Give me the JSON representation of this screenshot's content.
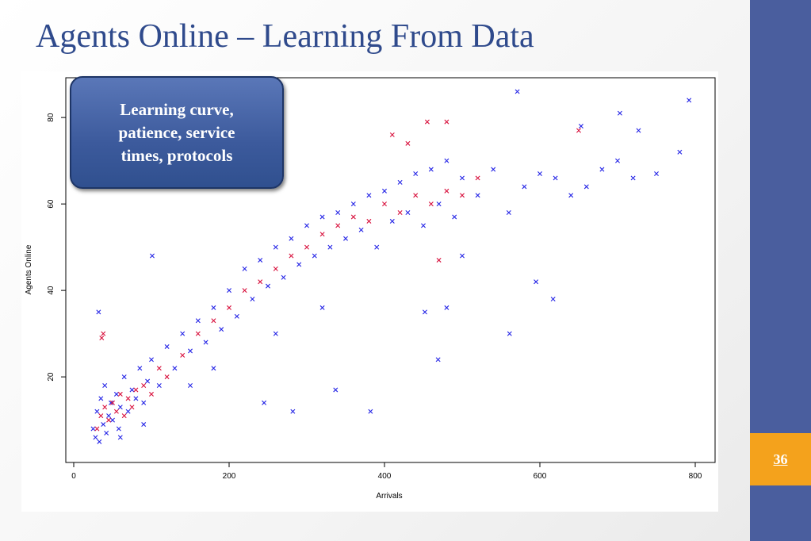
{
  "header": {
    "title": "Agents Online – Learning From Data"
  },
  "callout": {
    "text": "Learning curve, patience, service times, protocols"
  },
  "page_number": "36",
  "chart_data": {
    "type": "scatter",
    "xlabel": "Arrivals",
    "ylabel": "Agents Online",
    "xlim": [
      -10.2,
      825.5
    ],
    "ylim": [
      0.2,
      89.2
    ],
    "xticks": [
      0,
      200,
      400,
      600,
      800
    ],
    "yticks": [
      20,
      40,
      60,
      80
    ],
    "series": [
      {
        "color": "#2424e6",
        "x": [
          25,
          28,
          30,
          33,
          35,
          38,
          40,
          42,
          45,
          48,
          50,
          55,
          58,
          60,
          65,
          70,
          75,
          80,
          85,
          90,
          95,
          100,
          110,
          120,
          130,
          140,
          150,
          160,
          170,
          180,
          190,
          200,
          210,
          220,
          230,
          240,
          250,
          260,
          270,
          280,
          290,
          300,
          310,
          320,
          330,
          340,
          350,
          360,
          370,
          380,
          390,
          400,
          410,
          420,
          430,
          440,
          450,
          460,
          470,
          480,
          490,
          500,
          520,
          540,
          560,
          580,
          600,
          620,
          640,
          660,
          680,
          700,
          720,
          750,
          780,
          792,
          571,
          653,
          703,
          727,
          382,
          282,
          337,
          245,
          101,
          32,
          469,
          561,
          617,
          595,
          480,
          452,
          180,
          260,
          150,
          320,
          500,
          60,
          90
        ],
        "values": [
          8,
          6,
          12,
          5,
          15,
          9,
          18,
          7,
          11,
          14,
          10,
          16,
          8,
          13,
          20,
          12,
          17,
          15,
          22,
          14,
          19,
          24,
          18,
          27,
          22,
          30,
          26,
          33,
          28,
          36,
          31,
          40,
          34,
          45,
          38,
          47,
          41,
          50,
          43,
          52,
          46,
          55,
          48,
          57,
          50,
          58,
          52,
          60,
          54,
          62,
          50,
          63,
          56,
          65,
          58,
          67,
          55,
          68,
          60,
          70,
          57,
          66,
          62,
          68,
          58,
          64,
          67,
          66,
          62,
          64,
          68,
          70,
          66,
          67,
          72,
          84,
          86,
          78,
          81,
          77,
          12,
          12,
          17,
          14,
          48,
          35,
          24,
          30,
          38,
          42,
          36,
          35,
          22,
          30,
          18,
          36,
          48,
          6,
          9
        ]
      },
      {
        "color": "#d8103c",
        "x": [
          30,
          35,
          40,
          45,
          50,
          55,
          60,
          65,
          70,
          75,
          80,
          90,
          100,
          110,
          120,
          140,
          160,
          180,
          200,
          220,
          240,
          260,
          280,
          300,
          320,
          340,
          360,
          380,
          400,
          420,
          440,
          460,
          480,
          500,
          520,
          410,
          455,
          430,
          480,
          36,
          38,
          470,
          650
        ],
        "values": [
          8,
          11,
          13,
          10,
          14,
          12,
          16,
          11,
          15,
          13,
          17,
          18,
          16,
          22,
          20,
          25,
          30,
          33,
          36,
          40,
          42,
          45,
          48,
          50,
          53,
          55,
          57,
          56,
          60,
          58,
          62,
          60,
          63,
          62,
          66,
          76,
          79,
          74,
          79,
          29,
          30,
          47,
          77
        ]
      }
    ]
  }
}
